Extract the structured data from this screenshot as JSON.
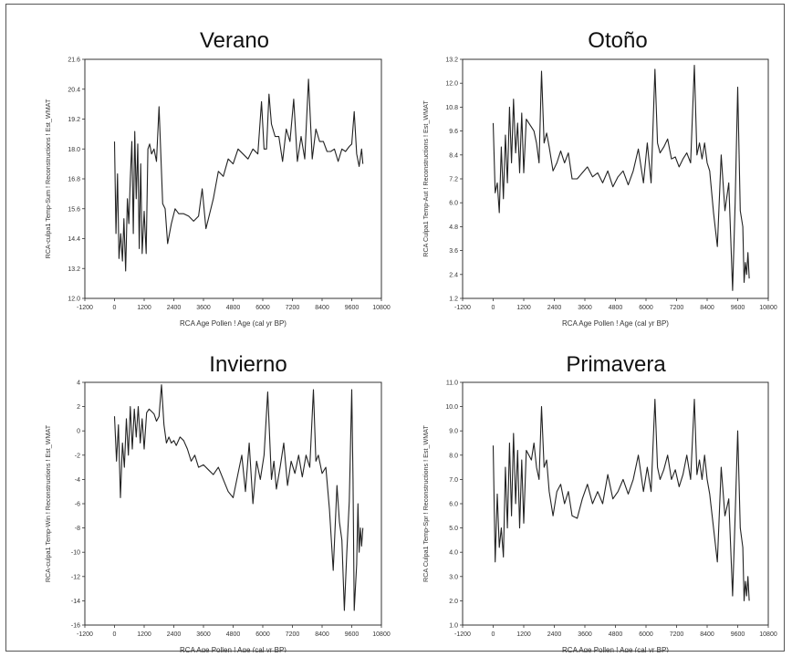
{
  "figure": {
    "panels": [
      {
        "title": "Verano",
        "ylabel": "RCA-culpa1 Temp-Sum ! Reconstructions ! Est_WMAT",
        "xlabel": "RCA Age Pollen ! Age (cal yr BP)",
        "xticks": [
          "-1200",
          "0",
          "1200",
          "2400",
          "3600",
          "4800",
          "6000",
          "7200",
          "8400",
          "9600",
          "10800"
        ],
        "yticks": [
          "12.0",
          "13.2",
          "14.4",
          "15.6",
          "16.8",
          "18.0",
          "19.2",
          "20.4",
          "21.6"
        ]
      },
      {
        "title": "Otoño",
        "ylabel": "RCA Culpa1 Temp-Aut ! Reconstructions ! Est_WMAT",
        "xlabel": "RCA Age Pollen ! Age (cal yr BP)",
        "xticks": [
          "-1200",
          "0",
          "1200",
          "2400",
          "3600",
          "4800",
          "6000",
          "7200",
          "8400",
          "9600",
          "10800"
        ],
        "yticks": [
          "1.2",
          "2.4",
          "3.6",
          "4.8",
          "6.0",
          "7.2",
          "8.4",
          "9.6",
          "10.8",
          "12.0",
          "13.2"
        ]
      },
      {
        "title": "Invierno",
        "ylabel": "RCA-culpa1 Temp-Win ! Reconstructions ! Est_WMAT",
        "xlabel": "RCA Age Pollen ! Age (cal yr BP)",
        "xticks": [
          "-1200",
          "0",
          "1200",
          "2400",
          "3600",
          "4800",
          "6000",
          "7200",
          "8400",
          "9600",
          "10800"
        ],
        "yticks": [
          "-16",
          "-14",
          "-12",
          "-10",
          "-8",
          "-6",
          "-4",
          "-2",
          "0",
          "2",
          "4"
        ]
      },
      {
        "title": "Primavera",
        "ylabel": "RCA Culpa1 Temp-Spr ! Reconstructions ! Est_WMAT",
        "xlabel": "RCA Age Pollen ! Age (cal yr BP)",
        "xticks": [
          "-1200",
          "0",
          "1200",
          "2400",
          "3600",
          "4800",
          "6000",
          "7200",
          "8400",
          "9600",
          "10800"
        ],
        "yticks": [
          "1.0",
          "2.0",
          "3.0",
          "4.0",
          "5.0",
          "6.0",
          "7.0",
          "8.0",
          "9.0",
          "10.0",
          "11.0"
        ]
      }
    ]
  },
  "chart_data": [
    {
      "type": "line",
      "title": "Verano",
      "xlabel": "RCA Age Pollen ! Age (cal yr BP)",
      "ylabel": "RCA-culpa1 Temp-Sum ! Reconstructions ! Est_WMAT",
      "xlim": [
        -1200,
        10800
      ],
      "ylim": [
        12.0,
        21.6
      ],
      "color": "#222222",
      "series": [
        {
          "x": [
            0,
            60,
            120,
            180,
            250,
            320,
            380,
            450,
            520,
            580,
            640,
            700,
            760,
            820,
            880,
            940,
            1000,
            1060,
            1120,
            1200,
            1280,
            1350,
            1420,
            1500,
            1600,
            1700,
            1800,
            1950,
            2050,
            2150,
            2300,
            2450,
            2600,
            2800,
            3000,
            3200,
            3400,
            3550,
            3700,
            3800,
            4000,
            4200,
            4400,
            4600,
            4800,
            5000,
            5200,
            5400,
            5600,
            5800,
            5950,
            6050,
            6150,
            6250,
            6350,
            6500,
            6650,
            6800,
            6950,
            7100,
            7250,
            7400,
            7550,
            7700,
            7850,
            8000,
            8150,
            8300,
            8450,
            8600,
            8750,
            8900,
            9050,
            9200,
            9350,
            9500,
            9600,
            9700,
            9800,
            9900,
            10000,
            10050
          ],
          "y": [
            18.3,
            14.6,
            17.0,
            13.6,
            14.6,
            13.5,
            15.2,
            13.1,
            16.0,
            15.0,
            16.8,
            18.3,
            14.6,
            18.7,
            16.0,
            18.2,
            14.0,
            17.4,
            13.8,
            15.5,
            13.8,
            18.0,
            18.2,
            17.8,
            18.0,
            17.5,
            19.7,
            15.8,
            15.6,
            14.2,
            15.0,
            15.6,
            15.4,
            15.4,
            15.3,
            15.1,
            15.3,
            16.4,
            14.8,
            15.2,
            16.0,
            17.1,
            16.9,
            17.6,
            17.4,
            18.0,
            17.8,
            17.6,
            18.0,
            17.8,
            19.9,
            18.0,
            18.0,
            20.2,
            19.0,
            18.5,
            18.5,
            17.5,
            18.8,
            18.3,
            20.0,
            17.5,
            18.5,
            17.6,
            20.8,
            17.6,
            18.8,
            18.3,
            18.3,
            17.9,
            17.9,
            18.0,
            17.5,
            18.0,
            17.9,
            18.1,
            18.2,
            19.5,
            17.8,
            17.3,
            18.0,
            17.4
          ]
        }
      ]
    },
    {
      "type": "line",
      "title": "Otoño",
      "xlabel": "RCA Age Pollen ! Age (cal yr BP)",
      "ylabel": "RCA Culpa1 Temp-Aut ! Reconstructions ! Est_WMAT",
      "xlim": [
        -1200,
        10800
      ],
      "ylim": [
        1.2,
        13.2
      ],
      "color": "#222222",
      "series": [
        {
          "x": [
            0,
            80,
            160,
            240,
            320,
            400,
            480,
            560,
            640,
            720,
            800,
            880,
            960,
            1040,
            1120,
            1200,
            1300,
            1400,
            1500,
            1600,
            1700,
            1800,
            1900,
            2000,
            2100,
            2200,
            2350,
            2500,
            2650,
            2800,
            2950,
            3100,
            3300,
            3500,
            3700,
            3900,
            4100,
            4300,
            4500,
            4700,
            4900,
            5100,
            5300,
            5500,
            5700,
            5900,
            6050,
            6200,
            6350,
            6450,
            6550,
            6700,
            6850,
            7000,
            7150,
            7300,
            7450,
            7600,
            7750,
            7900,
            8000,
            8100,
            8200,
            8300,
            8400,
            8500,
            8650,
            8800,
            8950,
            9100,
            9250,
            9400,
            9500,
            9600,
            9700,
            9800,
            9850,
            9900,
            9950,
            10000,
            10050
          ],
          "y": [
            10.0,
            6.5,
            7.0,
            5.5,
            8.8,
            6.2,
            9.4,
            7.0,
            10.8,
            8.0,
            11.2,
            8.5,
            10.0,
            7.5,
            10.5,
            7.5,
            10.2,
            10.0,
            9.8,
            9.6,
            9.0,
            8.0,
            12.6,
            9.0,
            9.5,
            8.8,
            7.6,
            8.0,
            8.6,
            8.0,
            8.5,
            7.2,
            7.2,
            7.5,
            7.8,
            7.3,
            7.5,
            7.0,
            7.6,
            6.8,
            7.3,
            7.6,
            6.9,
            7.6,
            8.7,
            7.0,
            9.0,
            7.0,
            12.7,
            9.0,
            8.5,
            8.8,
            9.2,
            8.2,
            8.3,
            7.8,
            8.2,
            8.5,
            8.0,
            12.9,
            8.4,
            9.0,
            8.2,
            9.0,
            8.0,
            7.6,
            5.5,
            3.8,
            8.4,
            5.6,
            7.0,
            1.6,
            6.0,
            11.8,
            5.6,
            4.8,
            2.0,
            3.0,
            2.4,
            3.5,
            2.2
          ]
        }
      ]
    },
    {
      "type": "line",
      "title": "Invierno",
      "xlabel": "RCA Age Pollen ! Age (cal yr BP)",
      "ylabel": "RCA-culpa1 Temp-Win ! Reconstructions ! Est_WMAT",
      "xlim": [
        -1200,
        10800
      ],
      "ylim": [
        -16,
        4
      ],
      "color": "#222222",
      "series": [
        {
          "x": [
            0,
            80,
            160,
            240,
            320,
            400,
            480,
            560,
            640,
            720,
            800,
            880,
            960,
            1040,
            1120,
            1200,
            1300,
            1400,
            1500,
            1600,
            1700,
            1800,
            1900,
            2000,
            2100,
            2200,
            2300,
            2400,
            2500,
            2650,
            2800,
            2950,
            3100,
            3250,
            3400,
            3600,
            3800,
            4000,
            4200,
            4400,
            4600,
            4800,
            5000,
            5150,
            5300,
            5450,
            5600,
            5750,
            5900,
            6050,
            6200,
            6350,
            6450,
            6550,
            6700,
            6850,
            7000,
            7150,
            7300,
            7450,
            7600,
            7750,
            7900,
            8050,
            8150,
            8250,
            8400,
            8550,
            8700,
            8850,
            9000,
            9100,
            9200,
            9300,
            9400,
            9500,
            9600,
            9650,
            9700,
            9800,
            9850,
            9900,
            9950,
            10000,
            10050
          ],
          "y": [
            1.2,
            -2.5,
            0.5,
            -5.5,
            -1.0,
            -3.0,
            1.0,
            -2.0,
            2.0,
            -1.5,
            1.8,
            -0.5,
            2.0,
            -1.0,
            1.0,
            -1.5,
            1.5,
            1.8,
            1.6,
            1.4,
            0.8,
            1.2,
            3.8,
            0.5,
            -1.0,
            -0.5,
            -1.0,
            -0.8,
            -1.2,
            -0.5,
            -0.8,
            -1.5,
            -2.5,
            -2.0,
            -3.0,
            -2.8,
            -3.2,
            -3.6,
            -3.0,
            -4.0,
            -5.0,
            -5.5,
            -3.5,
            -2.0,
            -5.0,
            -1.0,
            -6.0,
            -2.5,
            -4.0,
            -2.0,
            3.2,
            -4.0,
            -2.5,
            -4.8,
            -3.0,
            -1.0,
            -4.5,
            -2.5,
            -3.5,
            -2.0,
            -3.8,
            -2.0,
            -3.0,
            3.4,
            -2.5,
            -2.0,
            -3.5,
            -3.0,
            -6.5,
            -11.5,
            -4.5,
            -7.5,
            -9.0,
            -14.8,
            -10.0,
            -5.8,
            3.4,
            -4.0,
            -14.8,
            -11.0,
            -6.0,
            -10.0,
            -8.0,
            -9.5,
            -8.0
          ]
        }
      ]
    },
    {
      "type": "line",
      "title": "Primavera",
      "xlabel": "RCA Age Pollen ! Age (cal yr BP)",
      "ylabel": "RCA Culpa1 Temp-Spr ! Reconstructions ! Est_WMAT",
      "xlim": [
        -1200,
        10800
      ],
      "ylim": [
        1.0,
        11.0
      ],
      "color": "#222222",
      "series": [
        {
          "x": [
            0,
            80,
            160,
            240,
            320,
            400,
            480,
            560,
            640,
            720,
            800,
            880,
            960,
            1040,
            1120,
            1200,
            1300,
            1400,
            1500,
            1600,
            1700,
            1800,
            1900,
            2000,
            2100,
            2200,
            2350,
            2500,
            2650,
            2800,
            2950,
            3100,
            3300,
            3500,
            3700,
            3900,
            4100,
            4300,
            4500,
            4700,
            4900,
            5100,
            5300,
            5500,
            5700,
            5900,
            6050,
            6200,
            6350,
            6450,
            6550,
            6700,
            6850,
            7000,
            7150,
            7300,
            7450,
            7600,
            7750,
            7900,
            8000,
            8100,
            8200,
            8300,
            8400,
            8500,
            8650,
            8800,
            8950,
            9100,
            9250,
            9400,
            9500,
            9600,
            9700,
            9800,
            9850,
            9900,
            9950,
            10000,
            10050
          ],
          "y": [
            8.4,
            3.6,
            6.4,
            4.2,
            5.0,
            3.8,
            7.5,
            5.0,
            8.5,
            5.5,
            8.9,
            6.0,
            8.2,
            5.0,
            7.8,
            5.2,
            8.2,
            8.0,
            7.8,
            8.5,
            7.5,
            7.0,
            10.0,
            7.5,
            7.8,
            6.5,
            5.5,
            6.5,
            6.8,
            6.0,
            6.5,
            5.5,
            5.4,
            6.2,
            6.8,
            6.0,
            6.5,
            6.0,
            7.2,
            6.2,
            6.5,
            7.0,
            6.4,
            7.0,
            8.0,
            6.5,
            7.5,
            6.5,
            10.3,
            7.5,
            7.0,
            7.4,
            8.0,
            7.0,
            7.4,
            6.7,
            7.2,
            8.0,
            7.0,
            10.3,
            7.2,
            7.8,
            7.0,
            8.0,
            7.0,
            6.4,
            5.0,
            3.6,
            7.5,
            5.5,
            6.2,
            2.2,
            5.5,
            9.0,
            5.0,
            4.2,
            2.0,
            2.8,
            2.2,
            3.0,
            2.0
          ]
        }
      ]
    }
  ]
}
